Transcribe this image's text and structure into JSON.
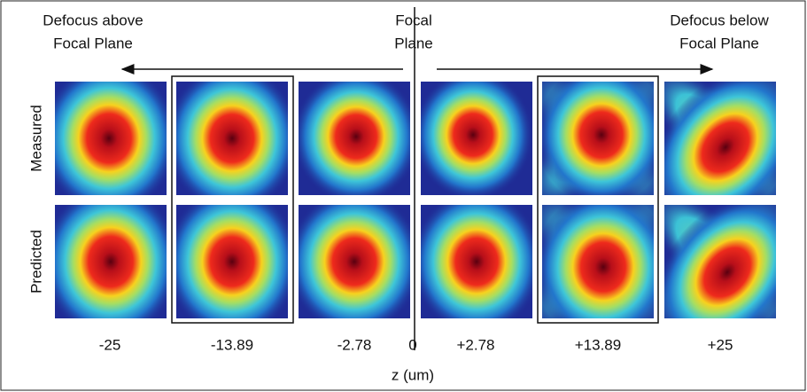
{
  "header": {
    "left": [
      "Defocus above",
      "Focal Plane"
    ],
    "center": [
      "Focal",
      "Plane"
    ],
    "right": [
      "Defocus below",
      "Focal Plane"
    ]
  },
  "rows": [
    "Measured",
    "Predicted"
  ],
  "columns": [
    "-25",
    "-13.89",
    "-2.78",
    "0",
    "+2.78",
    "+13.89",
    "+25"
  ],
  "axis_label": "z (um)"
}
